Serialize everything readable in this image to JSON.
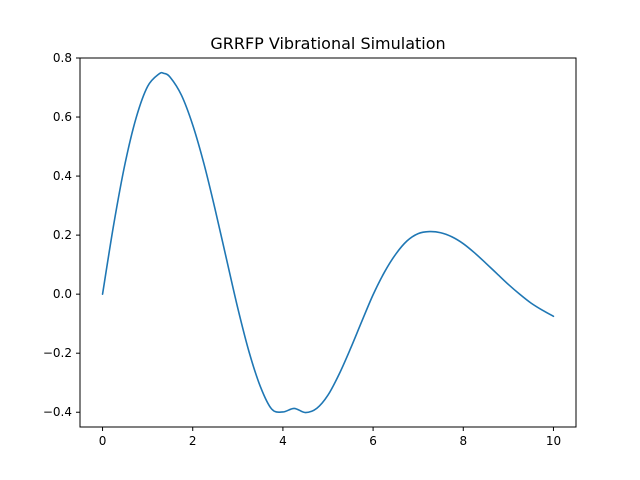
{
  "chart_data": {
    "type": "line",
    "title": "GRRFP Vibrational Simulation",
    "xlabel": "",
    "ylabel": "",
    "xlim": [
      -0.5,
      10.5
    ],
    "ylim": [
      -0.45,
      0.8
    ],
    "grid": false,
    "x_ticks": [
      0,
      2,
      4,
      6,
      8,
      10
    ],
    "x_tick_labels": [
      "0",
      "2",
      "4",
      "6",
      "8",
      "10"
    ],
    "y_ticks": [
      -0.4,
      -0.2,
      0.0,
      0.2,
      0.4,
      0.6,
      0.8
    ],
    "y_tick_labels": [
      "−0.4",
      "−0.2",
      "0.0",
      "0.2",
      "0.4",
      "0.6",
      "0.8"
    ],
    "series": [
      {
        "color": "#1f77b4",
        "x": [
          0,
          0.25,
          0.5,
          0.75,
          1.0,
          1.25,
          1.36,
          1.5,
          1.75,
          2.0,
          2.25,
          2.5,
          2.75,
          3.0,
          3.25,
          3.5,
          3.75,
          4.0,
          4.25,
          4.5,
          4.75,
          5.0,
          5.25,
          5.5,
          5.75,
          6.0,
          6.25,
          6.5,
          6.75,
          7.0,
          7.25,
          7.5,
          7.75,
          8.0,
          8.25,
          8.5,
          8.75,
          9.0,
          9.25,
          9.5,
          9.75,
          10.0
        ],
        "y": [
          0.0,
          0.238,
          0.443,
          0.6,
          0.704,
          0.746,
          0.748,
          0.735,
          0.674,
          0.573,
          0.441,
          0.285,
          0.118,
          -0.048,
          -0.196,
          -0.313,
          -0.389,
          -0.399,
          -0.387,
          -0.401,
          -0.387,
          -0.342,
          -0.27,
          -0.184,
          -0.092,
          -0.002,
          0.074,
          0.135,
          0.18,
          0.205,
          0.212,
          0.208,
          0.194,
          0.171,
          0.14,
          0.105,
          0.069,
          0.033,
          0.0,
          -0.03,
          -0.054,
          -0.075
        ]
      }
    ]
  }
}
